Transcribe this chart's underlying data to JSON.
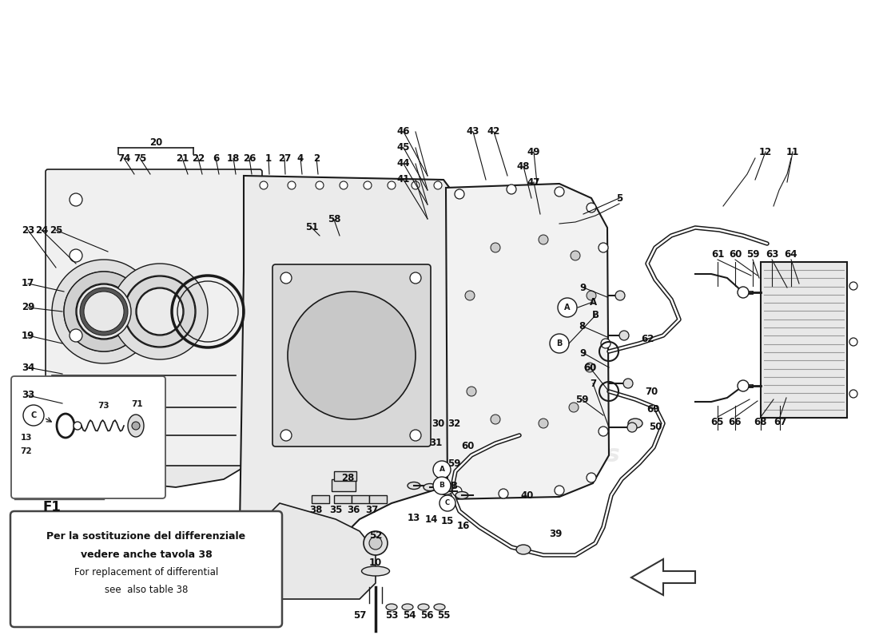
{
  "bg_color": "#ffffff",
  "watermark_color": "#cccccc",
  "line_color": "#1a1a1a",
  "note_box_text": [
    "Per la sostituzione del differenziale",
    "vedere anche tavola 38",
    "For replacement of differential",
    "see  also table 38"
  ],
  "arrow_tip_left": true
}
